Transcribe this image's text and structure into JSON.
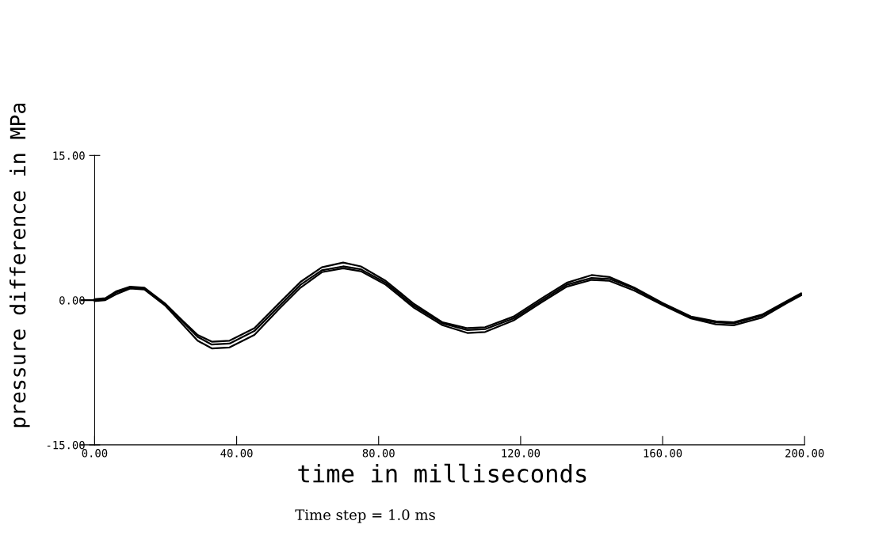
{
  "chart_data": {
    "type": "line",
    "xlabel": "time in milliseconds",
    "ylabel": "pressure difference in MPa",
    "annotations": [
      "Time step = 1.0 ms"
    ],
    "x": [
      0,
      3,
      6,
      10,
      14,
      20,
      25,
      29,
      33,
      38,
      45,
      52,
      58,
      64,
      70,
      75,
      82,
      90,
      98,
      105,
      110,
      118,
      126,
      133,
      140,
      145,
      152,
      160,
      168,
      175,
      180,
      188,
      195,
      199
    ],
    "series": [
      {
        "color": "#000000",
        "x": [
          -4,
          0,
          3,
          6,
          10,
          14,
          20,
          25,
          29,
          33,
          38,
          45,
          52,
          58,
          64,
          70,
          75,
          82,
          90,
          98,
          105,
          110,
          118,
          126,
          133,
          140,
          145,
          152,
          160,
          168,
          175,
          180,
          188,
          195,
          199
        ],
        "values": [
          0,
          0,
          0.1,
          0.8,
          1.3,
          1.2,
          -0.5,
          -2.3,
          -3.8,
          -4.6,
          -4.5,
          -3.2,
          -0.6,
          1.6,
          3.1,
          3.5,
          3.2,
          1.8,
          -0.6,
          -2.4,
          -3.1,
          -3.0,
          -1.9,
          0.0,
          1.6,
          2.3,
          2.2,
          1.2,
          -0.4,
          -1.8,
          -2.3,
          -2.4,
          -1.6,
          -0.2,
          0.6
        ]
      },
      {
        "color": "#000000",
        "values": [
          0.1,
          0.2,
          0.9,
          1.4,
          1.3,
          -0.4,
          -2.2,
          -3.6,
          -4.3,
          -4.2,
          -2.9,
          -0.3,
          1.9,
          3.4,
          3.9,
          3.5,
          2.0,
          -0.4,
          -2.3,
          -2.9,
          -2.8,
          -1.7,
          0.2,
          1.8,
          2.6,
          2.4,
          1.3,
          -0.3,
          -1.7,
          -2.2,
          -2.3,
          -1.5,
          -0.1,
          0.7
        ]
      },
      {
        "color": "#000000",
        "values": [
          -0.1,
          0.0,
          0.6,
          1.2,
          1.1,
          -0.6,
          -2.6,
          -4.2,
          -5.0,
          -4.9,
          -3.6,
          -0.9,
          1.3,
          2.9,
          3.3,
          3.0,
          1.6,
          -0.8,
          -2.6,
          -3.4,
          -3.3,
          -2.1,
          -0.2,
          1.4,
          2.1,
          2.0,
          1.0,
          -0.5,
          -1.9,
          -2.5,
          -2.6,
          -1.8,
          -0.3,
          0.5
        ]
      }
    ],
    "xlim": [
      -4,
      200
    ],
    "ylim": [
      -15,
      15
    ],
    "xticks": [
      {
        "value": 0,
        "label": "0.00"
      },
      {
        "value": 40,
        "label": "40.00"
      },
      {
        "value": 80,
        "label": "80.00"
      },
      {
        "value": 120,
        "label": "120.00"
      },
      {
        "value": 160,
        "label": "160.00"
      },
      {
        "value": 200,
        "label": "200.00"
      }
    ],
    "yticks": [
      {
        "value": -15,
        "label": "-15.00"
      },
      {
        "value": 0,
        "label": "0.00"
      },
      {
        "value": 15,
        "label": "15.00"
      }
    ],
    "grid": false,
    "legend": false,
    "line_style": "solid",
    "marker": "none"
  }
}
